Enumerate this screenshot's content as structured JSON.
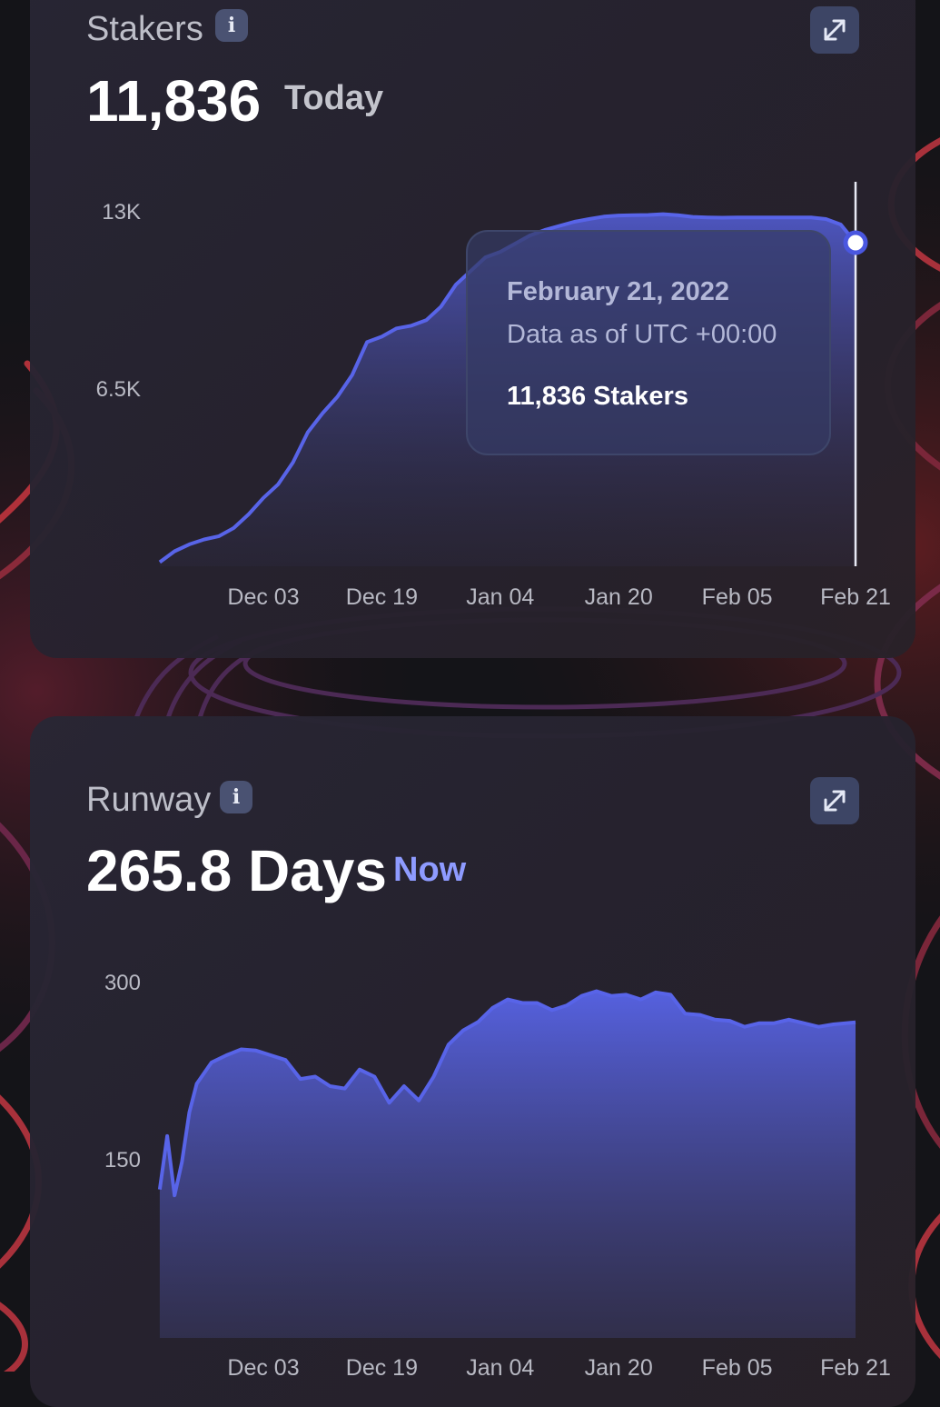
{
  "colors": {
    "accent": "#5864e8",
    "now_label": "#8e9bff",
    "title_text": "#bdbec8",
    "axis_text": "#b8b9c3"
  },
  "icons": {
    "info": "info-icon",
    "expand": "expand-arrows-icon"
  },
  "stakers": {
    "title": "Stakers",
    "value": "11,836",
    "value_suffix": "Today",
    "tooltip": {
      "date": "February 21, 2022",
      "subtitle": "Data as of UTC +00:00",
      "value": "11,836 Stakers"
    }
  },
  "runway": {
    "title": "Runway",
    "value": "265.8 Days",
    "value_suffix": "Now"
  },
  "chart_data": [
    {
      "type": "area",
      "y_tick_labels": [
        "13K",
        "6.5K"
      ],
      "x_tick_labels": [
        "Dec 03",
        "Dec 19",
        "Jan 04",
        "Jan 20",
        "Feb 05",
        "Feb 21"
      ],
      "ylim": [
        0,
        13000
      ],
      "x_dates": [
        "2021-11-19",
        "2021-11-21",
        "2021-11-23",
        "2021-11-25",
        "2021-11-27",
        "2021-11-29",
        "2021-12-01",
        "2021-12-03",
        "2021-12-05",
        "2021-12-07",
        "2021-12-09",
        "2021-12-11",
        "2021-12-13",
        "2021-12-15",
        "2021-12-17",
        "2021-12-19",
        "2021-12-21",
        "2021-12-23",
        "2021-12-25",
        "2021-12-27",
        "2021-12-29",
        "2021-12-31",
        "2022-01-02",
        "2022-01-04",
        "2022-01-06",
        "2022-01-08",
        "2022-01-10",
        "2022-01-12",
        "2022-01-14",
        "2022-01-16",
        "2022-01-18",
        "2022-01-20",
        "2022-01-22",
        "2022-01-24",
        "2022-01-26",
        "2022-01-28",
        "2022-01-30",
        "2022-02-01",
        "2022-02-03",
        "2022-02-05",
        "2022-02-07",
        "2022-02-09",
        "2022-02-11",
        "2022-02-13",
        "2022-02-15",
        "2022-02-17",
        "2022-02-19",
        "2022-02-21"
      ],
      "values": [
        150,
        550,
        800,
        980,
        1100,
        1400,
        1900,
        2500,
        3000,
        3800,
        4900,
        5600,
        6200,
        7000,
        8200,
        8400,
        8700,
        8800,
        9000,
        9500,
        10300,
        10800,
        11300,
        11500,
        11800,
        12100,
        12300,
        12450,
        12600,
        12700,
        12790,
        12830,
        12840,
        12850,
        12880,
        12840,
        12780,
        12760,
        12750,
        12760,
        12760,
        12760,
        12760,
        12760,
        12760,
        12700,
        12500,
        11836
      ],
      "tooltip_date": "2022-02-21"
    },
    {
      "type": "area",
      "y_tick_labels": [
        "300",
        "150"
      ],
      "x_tick_labels": [
        "Dec 03",
        "Dec 19",
        "Jan 04",
        "Jan 20",
        "Feb 05",
        "Feb 21"
      ],
      "ylim": [
        0,
        300
      ],
      "x_dates": [
        "2021-11-19",
        "2021-11-20",
        "2021-11-21",
        "2021-11-22",
        "2021-11-23",
        "2021-11-24",
        "2021-11-26",
        "2021-11-28",
        "2021-11-30",
        "2021-12-02",
        "2021-12-04",
        "2021-12-06",
        "2021-12-08",
        "2021-12-10",
        "2021-12-12",
        "2021-12-14",
        "2021-12-16",
        "2021-12-18",
        "2021-12-20",
        "2021-12-22",
        "2021-12-24",
        "2021-12-26",
        "2021-12-28",
        "2021-12-30",
        "2022-01-01",
        "2022-01-03",
        "2022-01-05",
        "2022-01-07",
        "2022-01-09",
        "2022-01-11",
        "2022-01-13",
        "2022-01-15",
        "2022-01-17",
        "2022-01-19",
        "2022-01-21",
        "2022-01-23",
        "2022-01-25",
        "2022-01-27",
        "2022-01-29",
        "2022-01-31",
        "2022-02-02",
        "2022-02-04",
        "2022-02-06",
        "2022-02-08",
        "2022-02-10",
        "2022-02-12",
        "2022-02-14",
        "2022-02-16",
        "2022-02-18",
        "2022-02-21"
      ],
      "values": [
        125,
        170,
        120,
        148,
        190,
        214,
        232,
        238,
        243,
        242,
        238,
        234,
        218,
        220,
        212,
        210,
        226,
        220,
        198,
        212,
        200,
        220,
        247,
        259,
        266,
        278,
        285,
        282,
        282,
        276,
        280,
        288,
        292,
        288,
        289,
        285,
        291,
        289,
        273,
        272,
        268,
        267,
        262,
        265,
        265,
        268,
        265,
        262,
        264,
        265.8
      ]
    }
  ]
}
